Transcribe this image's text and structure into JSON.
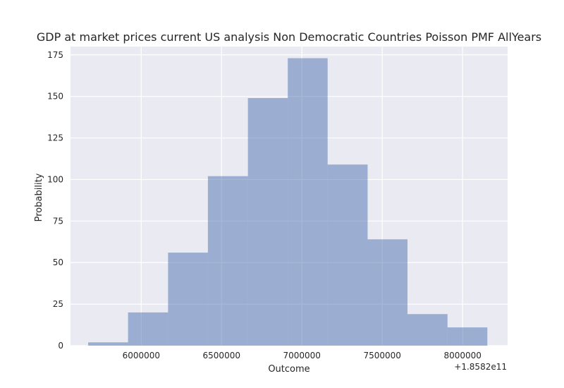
{
  "chart_data": {
    "type": "bar",
    "title": "GDP at market prices current US analysis Non Democratic Countries Poisson PMF AllYears",
    "xlabel": "Outcome",
    "ylabel": "Probability",
    "x_offset_label": "+1.8582e11",
    "xlim": [
      5560000,
      8280000
    ],
    "ylim": [
      0,
      180
    ],
    "x_ticks": [
      6000000,
      6500000,
      7000000,
      7500000,
      8000000
    ],
    "x_tick_labels": [
      "6000000",
      "6500000",
      "7000000",
      "7500000",
      "8000000"
    ],
    "y_ticks": [
      0,
      25,
      50,
      75,
      100,
      125,
      150,
      175
    ],
    "y_tick_labels": [
      "0",
      "25",
      "50",
      "75",
      "100",
      "125",
      "150",
      "175"
    ],
    "bins": [
      {
        "start": 5670000,
        "end": 5918000,
        "value": 2
      },
      {
        "start": 5918000,
        "end": 6167000,
        "value": 20
      },
      {
        "start": 6167000,
        "end": 6415000,
        "value": 56
      },
      {
        "start": 6415000,
        "end": 6664000,
        "value": 102
      },
      {
        "start": 6664000,
        "end": 6912000,
        "value": 149
      },
      {
        "start": 6912000,
        "end": 7160000,
        "value": 173
      },
      {
        "start": 7160000,
        "end": 7409000,
        "value": 109
      },
      {
        "start": 7409000,
        "end": 7657000,
        "value": 64
      },
      {
        "start": 7657000,
        "end": 7906000,
        "value": 19
      },
      {
        "start": 7906000,
        "end": 8154000,
        "value": 11
      }
    ],
    "grid": true,
    "bar_color": "#4c72b0",
    "bar_opacity": 0.5,
    "background_color": "#eaeaf2"
  }
}
